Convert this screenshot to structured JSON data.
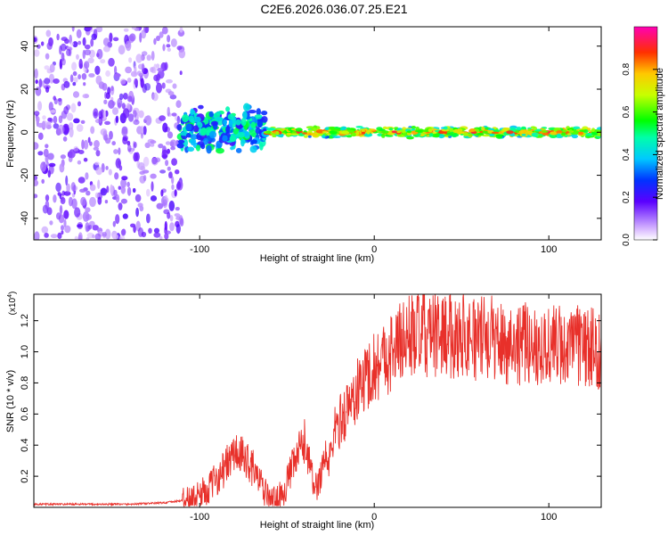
{
  "title": "C2E6.2026.036.07.25.E21",
  "colors": {
    "line": "#e8302a",
    "axis": "#000000"
  },
  "chart_data": [
    {
      "type": "heatmap",
      "xlabel": "Height of straight line (km)",
      "ylabel": "Frequency (Hz)",
      "xlim": [
        -195,
        130
      ],
      "ylim": [
        -50,
        49
      ],
      "xticks": [
        -100,
        0,
        100
      ],
      "yticks": [
        -40,
        -20,
        0,
        20,
        40
      ],
      "colorbar": {
        "label": "Normalized spectral amplitude",
        "range": [
          0,
          1
        ],
        "ticks": [
          "0.0",
          "0.2",
          "0.4",
          "0.6",
          "0.8"
        ]
      },
      "description_regions": [
        {
          "x_range": [
            -195,
            -110
          ],
          "freq_range": [
            -50,
            49
          ],
          "amplitude": 0.15,
          "kind": "scattered"
        },
        {
          "x_range": [
            -112,
            -62
          ],
          "freq_range": [
            -12,
            14
          ],
          "amplitude": 0.45,
          "kind": "cluster"
        },
        {
          "x_range": [
            -62,
            130
          ],
          "freq_range": [
            -3,
            3
          ],
          "amplitude": 0.9,
          "kind": "band",
          "center_freq": 0
        }
      ]
    },
    {
      "type": "line",
      "xlabel": "Height of straight line (km)",
      "ylabel": "SNR (10 * v/v)",
      "y_multiplier": "(x10",
      "y_multiplier_exp": "4",
      "xlim": [
        -195,
        130
      ],
      "ylim": [
        0,
        1.37
      ],
      "xticks": [
        -100,
        0,
        100
      ],
      "yticks": [
        "0.2",
        "0.4",
        "0.6",
        "0.8",
        "1.0",
        "1.2"
      ],
      "series": [
        {
          "name": "SNR",
          "x": [
            -195,
            -180,
            -160,
            -140,
            -120,
            -105,
            -95,
            -88,
            -84,
            -80,
            -76,
            -72,
            -68,
            -64,
            -60,
            -56,
            -52,
            -48,
            -45,
            -42,
            -40,
            -38,
            -36,
            -33,
            -30,
            -28,
            -26,
            -24,
            -22,
            -20,
            -16,
            -12,
            -8,
            -4,
            0,
            4,
            8,
            12,
            16,
            20,
            25,
            30,
            35,
            40,
            45,
            50,
            55,
            60,
            65,
            70,
            75,
            80,
            85,
            90,
            95,
            100,
            105,
            110,
            115,
            120,
            125,
            130
          ],
          "y": [
            0.02,
            0.02,
            0.02,
            0.02,
            0.03,
            0.05,
            0.12,
            0.22,
            0.28,
            0.35,
            0.32,
            0.3,
            0.22,
            0.12,
            0.05,
            0.05,
            0.1,
            0.22,
            0.3,
            0.38,
            0.42,
            0.35,
            0.2,
            0.12,
            0.25,
            0.35,
            0.25,
            0.45,
            0.5,
            0.55,
            0.62,
            0.7,
            0.78,
            0.85,
            0.9,
            0.95,
            0.98,
            1.02,
            1.08,
            1.1,
            1.12,
            1.1,
            1.1,
            1.12,
            1.1,
            1.12,
            1.1,
            1.08,
            1.1,
            1.08,
            1.05,
            1.06,
            1.05,
            1.05,
            1.04,
            1.04,
            1.05,
            1.03,
            1.03,
            1.04,
            1.02,
            1.02
          ]
        }
      ]
    }
  ]
}
